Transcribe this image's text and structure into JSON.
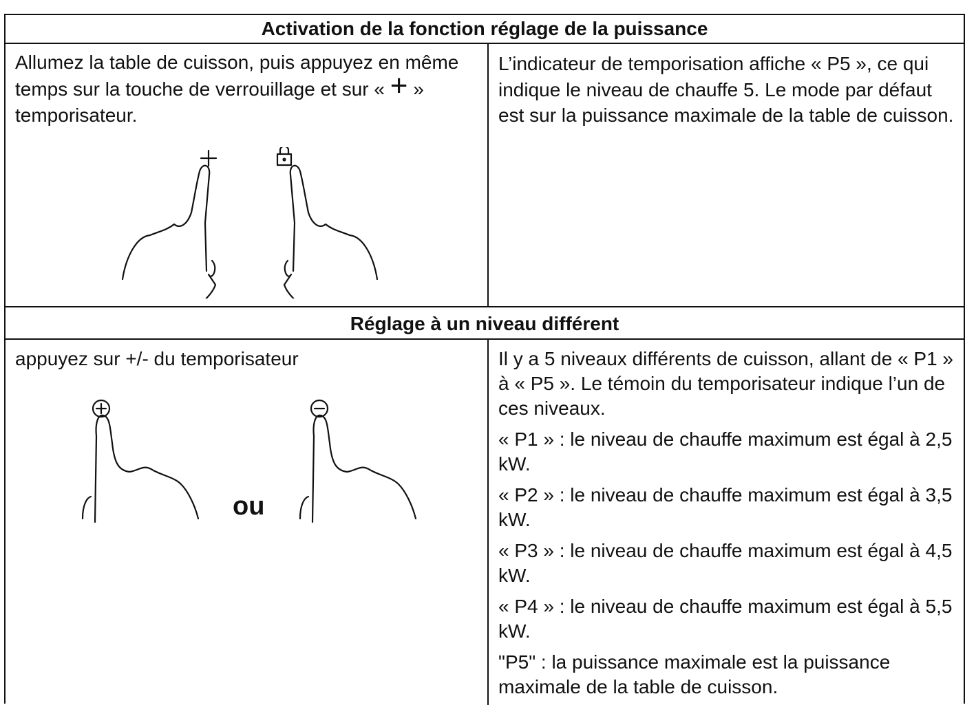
{
  "sections": [
    {
      "title": "Activation de la fonction réglage de la puissance",
      "left": {
        "text_before": "Allumez la table de cuisson, puis appuyez en même temps sur la touche de verrouillage et sur «",
        "symbol": "+",
        "text_after": "» temporisateur."
      },
      "right": {
        "text": "L’indicateur de temporisation affiche « P5 », ce qui indique le niveau de chauffe 5. Le mode par défaut est sur la puissance maximale de la table de cuisson."
      }
    },
    {
      "title": "Réglage à un niveau différent",
      "left": {
        "text": "appuyez sur +/- du temporisateur",
        "separator": "ou"
      },
      "right": {
        "paragraphs": [
          "Il y a 5 niveaux différents de cuisson, allant de « P1 » à « P5 ». Le témoin du temporisateur indique l’un de ces niveaux.",
          "« P1 » : le niveau de chauffe maximum est égal à 2,5 kW.",
          "« P2 » : le niveau de chauffe maximum est égal à 3,5 kW.",
          "« P3 » : le niveau de chauffe maximum est égal à 4,5 kW.",
          "« P4 » : le niveau de chauffe maximum est égal à 5,5 kW.",
          "\"P5\" : la puissance maximale est la puissance maximale de la table de cuisson."
        ]
      }
    }
  ]
}
